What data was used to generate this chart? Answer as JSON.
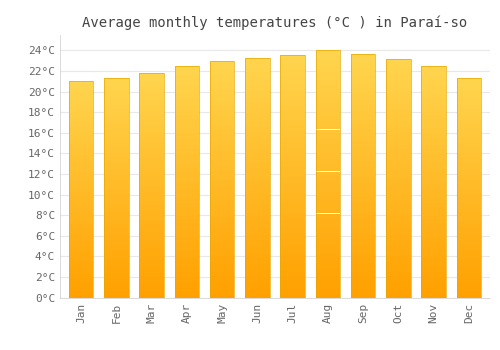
{
  "title": "Average monthly temperatures (°C ) in Paraí-so",
  "months": [
    "Jan",
    "Feb",
    "Mar",
    "Apr",
    "May",
    "Jun",
    "Jul",
    "Aug",
    "Sep",
    "Oct",
    "Nov",
    "Dec"
  ],
  "values": [
    21.0,
    21.3,
    21.8,
    22.5,
    23.0,
    23.3,
    23.6,
    24.0,
    23.7,
    23.2,
    22.5,
    21.3
  ],
  "bar_color_top": "#FFD54F",
  "bar_color_bottom": "#FFA000",
  "bar_edge_color": "#E6A800",
  "background_color": "#FFFFFF",
  "plot_bg_color": "#FFFFFF",
  "grid_color": "#E8E8E8",
  "yticks": [
    0,
    2,
    4,
    6,
    8,
    10,
    12,
    14,
    16,
    18,
    20,
    22,
    24
  ],
  "ylim": [
    0,
    25.5
  ],
  "title_fontsize": 10,
  "tick_fontsize": 8,
  "title_color": "#444444",
  "tick_color": "#666666"
}
